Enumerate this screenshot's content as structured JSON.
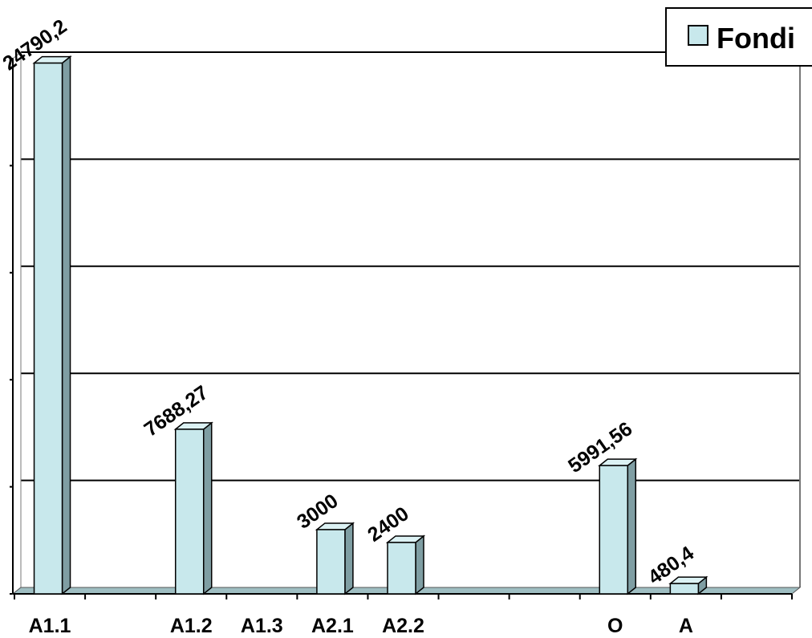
{
  "chart_data": {
    "type": "bar",
    "categories": [
      "A1.1",
      "",
      "A1.2",
      "A1.3",
      "A2.1",
      "A2.2",
      "",
      "",
      "O",
      "A",
      ""
    ],
    "series": [
      {
        "name": "Fondi",
        "values": [
          24790.2,
          null,
          7688.27,
          null,
          3000,
          2400,
          null,
          null,
          5991.56,
          480.4,
          null
        ]
      }
    ],
    "data_labels": [
      "24790,2",
      "",
      "7688,27",
      "",
      "3000",
      "2400",
      "",
      "",
      "5991,56",
      "480,4",
      ""
    ],
    "ylim": [
      0,
      25000
    ],
    "grid": true,
    "legend": "top-right",
    "title": "",
    "xlabel": "",
    "ylabel": "",
    "colors": {
      "bar_front": "#c8e8ec",
      "bar_side": "#7f9ea3",
      "bar_top": "#dcf2f4",
      "legend_swatch": "#c8e8ec"
    }
  }
}
